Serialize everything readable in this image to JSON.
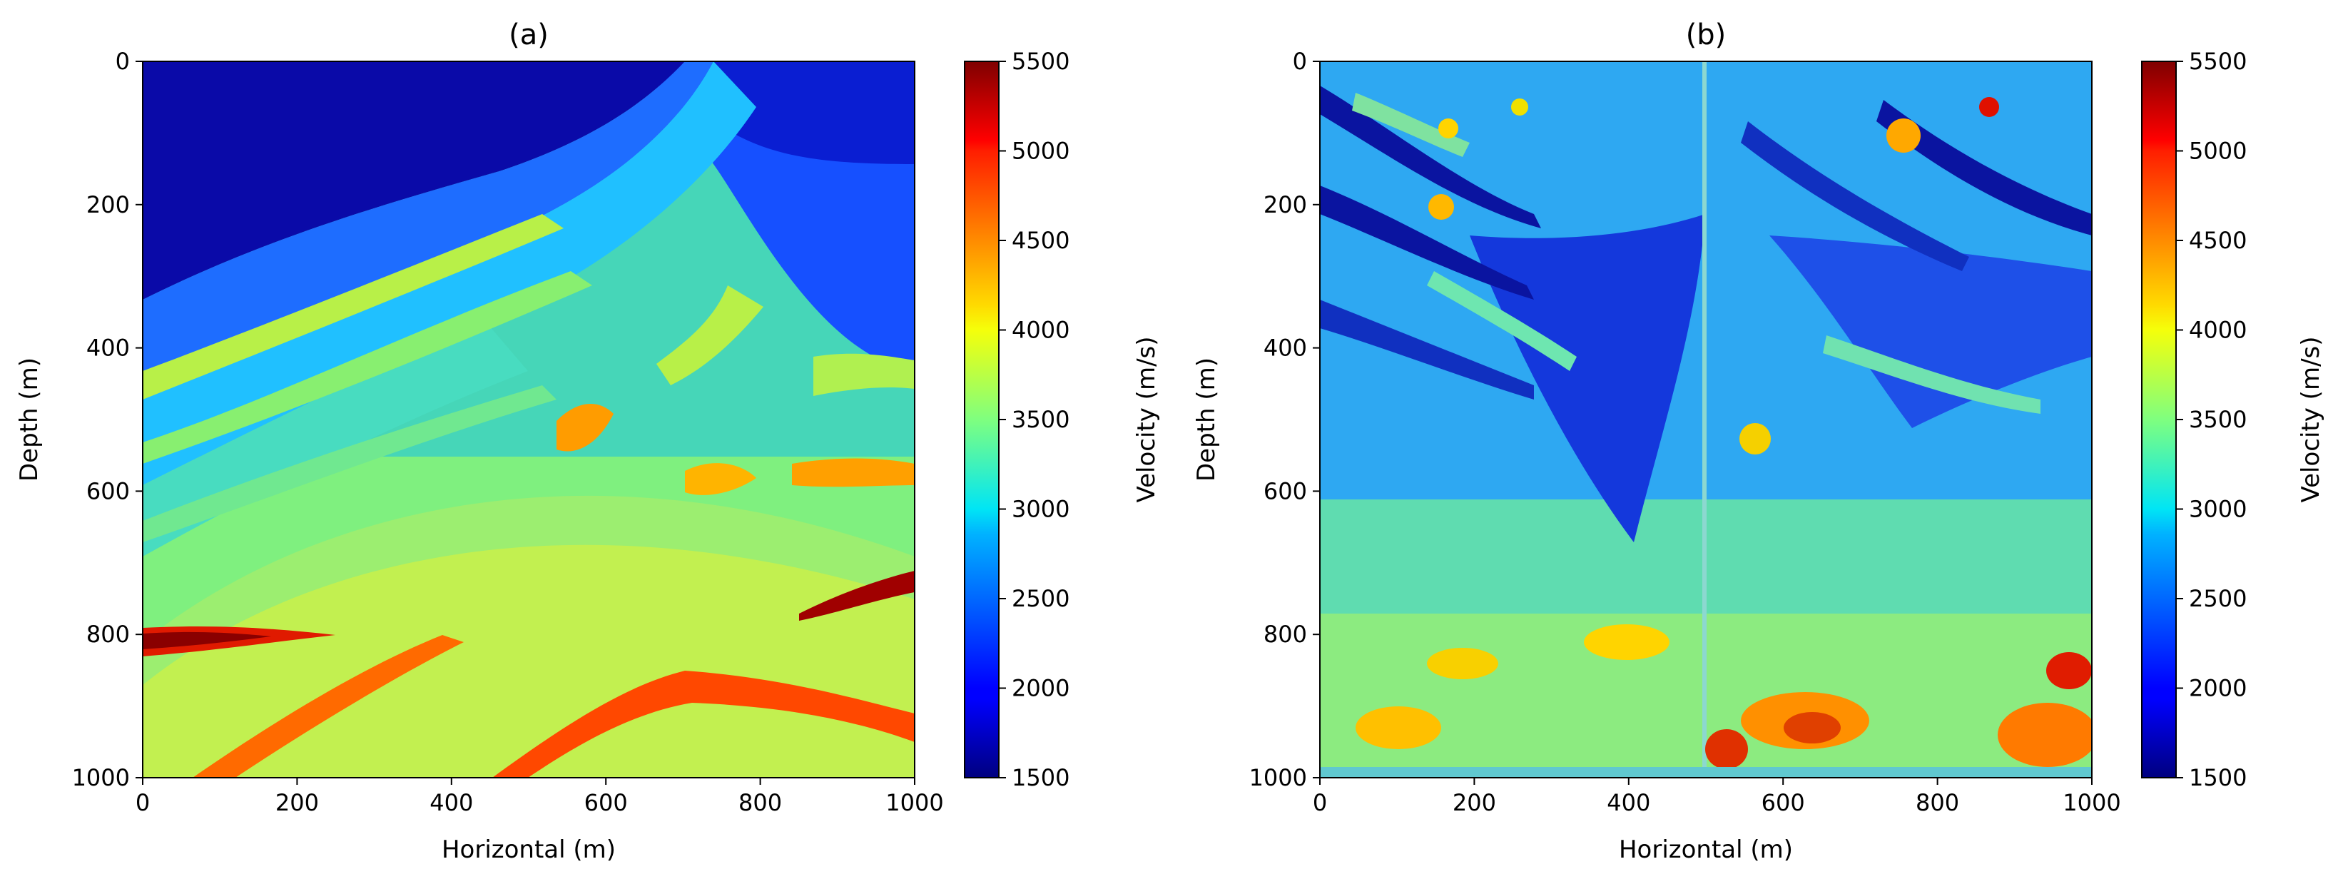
{
  "chart_data": [
    {
      "type": "heatmap",
      "title": "(a)",
      "xlabel": "Horizontal (m)",
      "ylabel": "Depth (m)",
      "xlim": [
        0,
        1000
      ],
      "ylim": [
        0,
        1000
      ],
      "y_inverted": true,
      "xticks": [
        "0",
        "200",
        "400",
        "600",
        "800",
        "1000"
      ],
      "yticks": [
        "0",
        "200",
        "400",
        "600",
        "800",
        "1000"
      ],
      "colorscale": "jet",
      "colorbar": {
        "label": "Velocity (m/s)",
        "range": [
          1500,
          5500
        ],
        "ticks": [
          "1500",
          "2000",
          "2500",
          "3000",
          "3500",
          "4000",
          "4500",
          "5000",
          "5500"
        ]
      },
      "grid": false,
      "description_values": {
        "shallow_velocity": 1800,
        "mid_layers_velocity": [
          2600,
          3700
        ],
        "deep_velocity": [
          3400,
          4200
        ],
        "high_velocity_lenses": 5300
      }
    },
    {
      "type": "heatmap",
      "title": "(b)",
      "xlabel": "Horizontal (m)",
      "ylabel": "Depth (m)",
      "xlim": [
        0,
        1000
      ],
      "ylim": [
        0,
        1000
      ],
      "y_inverted": true,
      "xticks": [
        "0",
        "200",
        "400",
        "600",
        "800",
        "1000"
      ],
      "yticks": [
        "0",
        "200",
        "400",
        "600",
        "800",
        "1000"
      ],
      "colorscale": "jet",
      "colorbar": {
        "label": "Velocity (m/s)",
        "range": [
          1500,
          5500
        ],
        "ticks": [
          "1500",
          "2000",
          "2500",
          "3000",
          "3500",
          "4000",
          "4500",
          "5000",
          "5500"
        ]
      },
      "grid": false,
      "description_values": {
        "shallow_velocity": 2200,
        "mid_layers_velocity": [
          2200,
          3600
        ],
        "deep_velocity": [
          3300,
          4800
        ],
        "high_velocity_lenses": 5000
      }
    }
  ]
}
